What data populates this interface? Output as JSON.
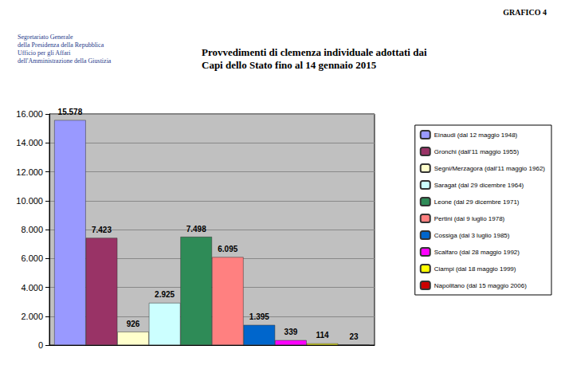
{
  "chart_data": {
    "type": "bar",
    "title": "Provvedimenti di clemenza individuale adottati dai Capi dello Stato fino al 14 gennaio 2015",
    "label": "GRAFICO 4",
    "annotations": [
      "Segretariato Generale",
      "della Presidenza della Repubblica",
      "Ufficio per gli Affari",
      "dell'Amministrazione della Giustizia"
    ],
    "categories": [
      null
    ],
    "series": [
      {
        "name": "Einaudi (dal 12 maggio 1948)",
        "color": "#9999ff",
        "values": [
          15578
        ],
        "value_labels": [
          "15.578"
        ]
      },
      {
        "name": "Gronchi (dall'11 maggio 1955)",
        "color": "#993366",
        "values": [
          7423
        ],
        "value_labels": [
          "7.423"
        ]
      },
      {
        "name": "Segni/Merzagora (dall'11 maggio 1962)",
        "color": "#ffffcc",
        "values": [
          926
        ]
      },
      {
        "name": "Saragat (dal 29 dicembre 1964)",
        "color": "#ccffff",
        "values": [
          2925
        ],
        "value_labels": [
          "2.925"
        ]
      },
      {
        "name": "Leone (dal 29 dicembre 1971)",
        "color": "#2e8b57",
        "values": [
          7498
        ],
        "value_labels": [
          "7.498"
        ]
      },
      {
        "name": "Pertini (dal 9 luglio 1978)",
        "color": "#ff8080",
        "values": [
          6095
        ],
        "value_labels": [
          "6.095"
        ]
      },
      {
        "name": "Cossiga (dal 3 luglio 1985)",
        "color": "#0066cc",
        "values": [
          1395
        ],
        "value_labels": [
          "1.395"
        ]
      },
      {
        "name": "Scalfaro (dal 28 maggio 1992)",
        "color": "#ff00ff",
        "values": [
          339
        ]
      },
      {
        "name": "Ciampi (dal 18 maggio 1999)",
        "color": "#ffff00",
        "values": [
          114
        ]
      },
      {
        "name": "Napolitano (dal 15 maggio 2006)",
        "color": "#cc0000",
        "values": [
          23
        ]
      }
    ],
    "ylim": [
      0,
      16000
    ],
    "yticks": [
      0,
      {
        "value": 2000,
        "label": "2.000"
      },
      {
        "value": 4000,
        "label": "4.000"
      },
      {
        "value": 6000,
        "label": "6.000"
      },
      {
        "value": 8000,
        "label": "8.000"
      },
      {
        "value": 10000,
        "label": "10.000"
      },
      {
        "value": 12000,
        "label": "12.000"
      },
      {
        "value": 14000,
        "label": "14.000"
      },
      {
        "value": 16000,
        "label": "16.000"
      }
    ],
    "grid": true,
    "legend": "right",
    "data_labels": true
  }
}
